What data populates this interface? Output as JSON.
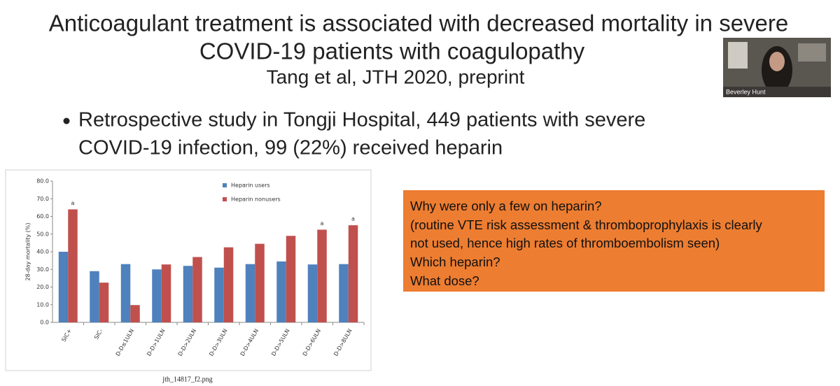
{
  "slide": {
    "title": [
      "Anticoagulant treatment is associated with decreased mortality in severe",
      "COVID-19 patients with coagulopathy"
    ],
    "subtitle": "Tang et al, JTH 2020, preprint",
    "bullet": [
      "Retrospective study in Tongji Hospital, 449 patients with severe",
      "COVID-19 infection, 99 (22%) received heparin"
    ],
    "box": [
      "Why were only a few on heparin?",
      "(routine VTE risk assessment & thromboprophylaxis is clearly",
      "not used, hence high rates of thromboembolism seen)",
      "Which heparin?",
      "What dose?"
    ],
    "video_name": "Beverley Hunt"
  },
  "chart_data": {
    "type": "bar",
    "ylabel": "28-day mortality (%)",
    "caption": "jth_14817_f2.png",
    "categories": [
      "SIC+",
      "SIC-",
      "D-D≤1ULN",
      "D-D>1ULN",
      "D-D>2ULN",
      "D-D>3ULN",
      "D-D>4ULN",
      "D-D>5ULN",
      "D-D>6ULN",
      "D-D>8ULN"
    ],
    "series": [
      {
        "name": "Heparin users",
        "color": "#4f81bd",
        "values": [
          40,
          29,
          33,
          30,
          32,
          31,
          33,
          34.5,
          32.8,
          33
        ]
      },
      {
        "name": "Heparin nonusers",
        "color": "#c0504d",
        "values": [
          64,
          22.5,
          9.8,
          32.8,
          37,
          42.5,
          44.5,
          49,
          52.5,
          55
        ]
      }
    ],
    "annotations": [
      {
        "text": "a",
        "x": "SIC+"
      },
      {
        "text": "a",
        "x": "D-D>6ULN"
      },
      {
        "text": "a",
        "x": "D-D>8ULN"
      }
    ],
    "ylim": [
      0,
      80
    ],
    "yticks": [
      {
        "value": 0,
        "label": "0.0"
      },
      {
        "value": 10,
        "label": "10.0"
      },
      {
        "value": 20,
        "label": "20.0"
      },
      {
        "value": 30,
        "label": "30.0"
      },
      {
        "value": 40,
        "label": "40.0"
      },
      {
        "value": 50,
        "label": "50.0"
      },
      {
        "value": 60,
        "label": "60.0"
      },
      {
        "value": 70,
        "label": "70.0"
      },
      {
        "value": 80,
        "label": "80.0"
      }
    ],
    "legend": "top"
  }
}
